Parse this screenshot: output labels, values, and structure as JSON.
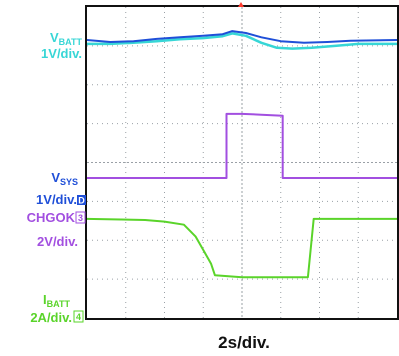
{
  "colors": {
    "vbatt": "#1f4fd8",
    "vbatt_shadow": "#37d6d6",
    "vsys": "#1f4fd8",
    "chgok": "#a24fe0",
    "ibatt": "#5ad42a",
    "label_vbatt": "#37d6d6",
    "label_vsys": "#1f4fd8",
    "label_chgok": "#a24fe0",
    "label_ibatt": "#5ad42a",
    "grid": "#9aa0a6",
    "frame": "#111111",
    "trigger": "#ff3b2f"
  },
  "labels": {
    "vbatt_main": "V",
    "vbatt_sub": "BATT",
    "vbatt_scale": "1V/div.",
    "vsys_main": "V",
    "vsys_sub": "SYS",
    "vsys_scale": "1V/div.",
    "vsys_marker": "D",
    "chgok_name": "CHGOK",
    "chgok_marker": "3",
    "chgok_scale": "2V/div.",
    "ibatt_main": "I",
    "ibatt_sub": "BATT",
    "ibatt_scale": "2A/div.",
    "ibatt_marker": "4",
    "time_scale": "2s/div."
  },
  "chart_data": {
    "type": "line",
    "grid": true,
    "divisions": {
      "x": 8,
      "y": 8
    },
    "xlim": [
      0,
      8
    ],
    "ylim": [
      0,
      8
    ],
    "xlabel": "2s/div.",
    "series": [
      {
        "x": [
          0,
          0.6,
          1.2,
          1.8,
          2.4,
          3.0,
          3.5,
          3.75,
          4.1,
          4.5,
          5.0,
          5.6,
          6.2,
          6.8,
          7.4,
          8.0
        ],
        "y": [
          7.15,
          7.1,
          7.12,
          7.18,
          7.22,
          7.26,
          7.3,
          7.38,
          7.33,
          7.22,
          7.12,
          7.08,
          7.1,
          7.13,
          7.14,
          7.15
        ]
      },
      {
        "x": [
          0,
          0.6,
          1.2,
          1.8,
          2.4,
          3.0,
          3.5,
          3.75,
          4.1,
          4.5,
          4.9,
          5.3,
          5.8,
          6.4,
          7.0,
          7.6,
          8.0
        ],
        "y": [
          7.05,
          7.05,
          7.08,
          7.12,
          7.17,
          7.2,
          7.25,
          7.32,
          7.26,
          7.08,
          6.95,
          6.93,
          6.95,
          7.0,
          7.05,
          7.05,
          7.05
        ]
      },
      {
        "x": [
          0,
          3.6,
          3.6,
          4.0,
          4.5,
          5.05,
          5.05,
          8.0
        ],
        "y": [
          3.6,
          3.6,
          5.25,
          5.25,
          5.23,
          5.2,
          3.6,
          3.6
        ]
      },
      {
        "x": [
          0,
          1.5,
          2.0,
          2.5,
          2.8,
          3.0,
          3.2,
          3.3,
          4.0,
          5.0,
          5.7,
          5.85,
          6.0,
          8.0
        ],
        "y": [
          2.55,
          2.52,
          2.48,
          2.4,
          2.1,
          1.75,
          1.4,
          1.1,
          1.05,
          1.05,
          1.05,
          2.55,
          2.55,
          2.55
        ]
      }
    ]
  }
}
